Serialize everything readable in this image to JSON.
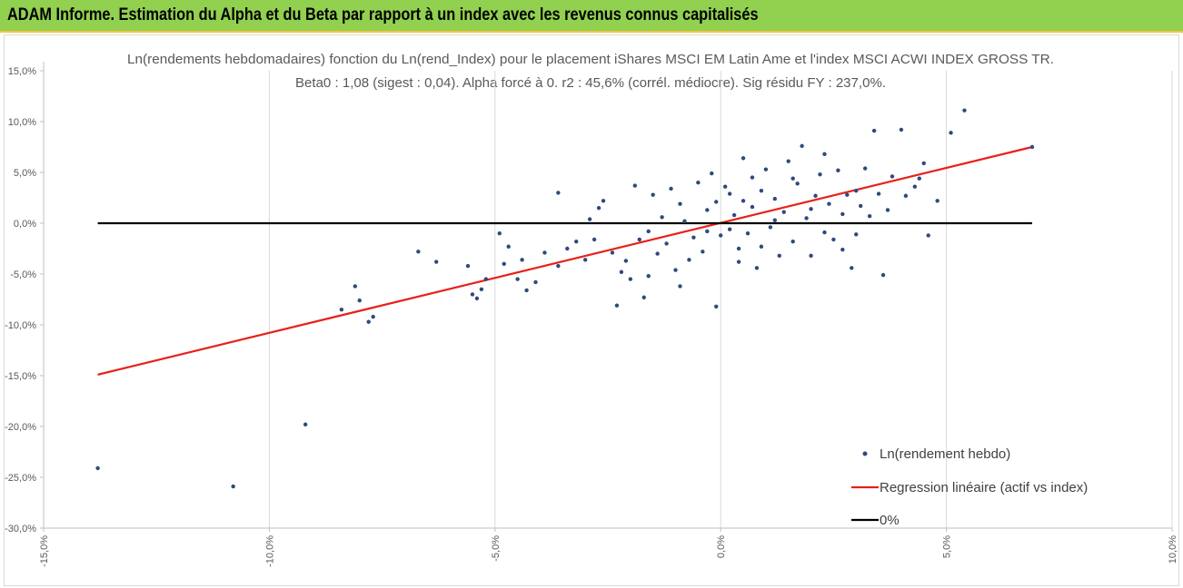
{
  "header": {
    "title": "ADAM Informe. Estimation du Alpha et du Beta par rapport à un index avec les revenus connus capitalisés"
  },
  "chart_data": {
    "type": "scatter",
    "title": "Ln(rendements hebdomadaires) fonction du Ln(rend_Index) pour le placement iShares MSCI EM Latin Ame et l'index MSCI ACWI INDEX GROSS TR.",
    "subtitle": "Beta0 : 1,08 (sigest : 0,04). Alpha forcé à 0. r2 : 45,6% (corrél. médiocre). Sig résidu FY : 237,0%.",
    "xlim": [
      -15,
      10
    ],
    "ylim": [
      -30,
      15
    ],
    "x_ticks": [
      "-15,0%",
      "-10,0%",
      "-5,0%",
      "0,0%",
      "5,0%",
      "10,0%"
    ],
    "y_ticks": [
      "15,0%",
      "10,0%",
      "5,0%",
      "0,0%",
      "-5,0%",
      "-10,0%",
      "-15,0%",
      "-20,0%",
      "-25,0%",
      "-30,0%"
    ],
    "grid": "vertical",
    "legend_position": "bottom-right",
    "colors": {
      "points": "#2e4a7d",
      "regression": "#e8201a",
      "zero": "#000000"
    },
    "series": [
      {
        "name": "Ln(rendement hebdo)",
        "kind": "scatter",
        "points": [
          [
            -13.8,
            -24.1
          ],
          [
            -10.8,
            -25.9
          ],
          [
            -9.2,
            -19.8
          ],
          [
            -8.4,
            -8.5
          ],
          [
            -8.1,
            -6.2
          ],
          [
            -8.0,
            -7.6
          ],
          [
            -7.8,
            -9.7
          ],
          [
            -7.7,
            -9.2
          ],
          [
            -6.7,
            -2.8
          ],
          [
            -6.3,
            -3.8
          ],
          [
            -5.6,
            -4.2
          ],
          [
            -5.5,
            -7.0
          ],
          [
            -5.4,
            -7.4
          ],
          [
            -5.3,
            -6.5
          ],
          [
            -5.2,
            -5.5
          ],
          [
            -4.9,
            -1.0
          ],
          [
            -4.8,
            -4.0
          ],
          [
            -4.7,
            -2.3
          ],
          [
            -4.5,
            -5.5
          ],
          [
            -4.4,
            -3.6
          ],
          [
            -4.3,
            -6.6
          ],
          [
            -4.1,
            -5.8
          ],
          [
            -3.9,
            -2.9
          ],
          [
            -3.6,
            -4.2
          ],
          [
            -3.6,
            3.0
          ],
          [
            -3.4,
            -2.5
          ],
          [
            -3.2,
            -1.8
          ],
          [
            -3.0,
            -3.6
          ],
          [
            -2.9,
            0.4
          ],
          [
            -2.8,
            -1.6
          ],
          [
            -2.6,
            2.2
          ],
          [
            -2.4,
            -2.9
          ],
          [
            -2.3,
            -8.1
          ],
          [
            -2.2,
            -4.8
          ],
          [
            -2.1,
            -3.7
          ],
          [
            -2.0,
            -5.5
          ],
          [
            -1.9,
            3.7
          ],
          [
            -1.8,
            -1.6
          ],
          [
            -1.7,
            -7.3
          ],
          [
            -1.6,
            -5.2
          ],
          [
            -1.5,
            2.8
          ],
          [
            -1.4,
            -3.0
          ],
          [
            -1.2,
            -2.0
          ],
          [
            -1.1,
            3.4
          ],
          [
            -1.0,
            -4.6
          ],
          [
            -0.9,
            -6.2
          ],
          [
            -0.8,
            0.2
          ],
          [
            -0.7,
            -3.6
          ],
          [
            -0.6,
            -1.4
          ],
          [
            -0.5,
            4.0
          ],
          [
            -0.4,
            -2.8
          ],
          [
            -0.3,
            -0.8
          ],
          [
            -0.2,
            4.9
          ],
          [
            -0.1,
            -8.2
          ],
          [
            -0.1,
            2.1
          ],
          [
            0.0,
            -1.2
          ],
          [
            0.1,
            3.6
          ],
          [
            0.2,
            -0.6
          ],
          [
            0.3,
            0.8
          ],
          [
            0.4,
            -2.5
          ],
          [
            0.5,
            6.4
          ],
          [
            0.5,
            2.2
          ],
          [
            0.6,
            -1.0
          ],
          [
            0.7,
            1.6
          ],
          [
            0.8,
            -4.4
          ],
          [
            0.9,
            3.2
          ],
          [
            1.0,
            5.3
          ],
          [
            1.1,
            -0.4
          ],
          [
            1.2,
            2.4
          ],
          [
            1.3,
            -3.2
          ],
          [
            1.4,
            1.1
          ],
          [
            1.5,
            6.1
          ],
          [
            1.6,
            -1.8
          ],
          [
            1.7,
            3.9
          ],
          [
            1.8,
            7.6
          ],
          [
            1.9,
            0.5
          ],
          [
            2.0,
            -3.2
          ],
          [
            2.1,
            2.7
          ],
          [
            2.2,
            4.8
          ],
          [
            2.3,
            -0.9
          ],
          [
            2.4,
            1.9
          ],
          [
            2.5,
            -1.6
          ],
          [
            2.6,
            5.2
          ],
          [
            2.7,
            0.9
          ],
          [
            2.8,
            2.8
          ],
          [
            2.9,
            -4.4
          ],
          [
            3.0,
            3.2
          ],
          [
            3.1,
            1.7
          ],
          [
            3.2,
            5.4
          ],
          [
            3.3,
            0.7
          ],
          [
            3.4,
            9.1
          ],
          [
            3.5,
            2.9
          ],
          [
            3.6,
            -5.1
          ],
          [
            3.7,
            1.3
          ],
          [
            3.8,
            4.6
          ],
          [
            4.0,
            9.2
          ],
          [
            4.1,
            2.7
          ],
          [
            4.3,
            3.6
          ],
          [
            4.4,
            4.4
          ],
          [
            4.5,
            5.9
          ],
          [
            4.6,
            -1.2
          ],
          [
            4.8,
            2.2
          ],
          [
            5.1,
            8.9
          ],
          [
            5.4,
            11.1
          ],
          [
            6.9,
            7.5
          ],
          [
            -2.7,
            1.5
          ],
          [
            -1.3,
            0.6
          ],
          [
            0.2,
            2.9
          ],
          [
            0.9,
            -2.3
          ],
          [
            1.6,
            4.4
          ],
          [
            2.3,
            6.8
          ],
          [
            3.0,
            -1.1
          ],
          [
            -0.3,
            1.3
          ],
          [
            0.4,
            -3.8
          ],
          [
            1.2,
            0.3
          ],
          [
            2.0,
            1.4
          ],
          [
            2.7,
            -2.6
          ],
          [
            -1.6,
            -0.8
          ],
          [
            -0.9,
            1.9
          ],
          [
            0.7,
            4.5
          ]
        ]
      },
      {
        "name": "Regression linéaire (actif vs index)",
        "kind": "line",
        "points": [
          [
            -13.8,
            -14.9
          ],
          [
            6.9,
            7.5
          ]
        ]
      },
      {
        "name": "0%",
        "kind": "line",
        "points": [
          [
            -13.8,
            0.0
          ],
          [
            6.9,
            0.0
          ]
        ]
      }
    ]
  }
}
